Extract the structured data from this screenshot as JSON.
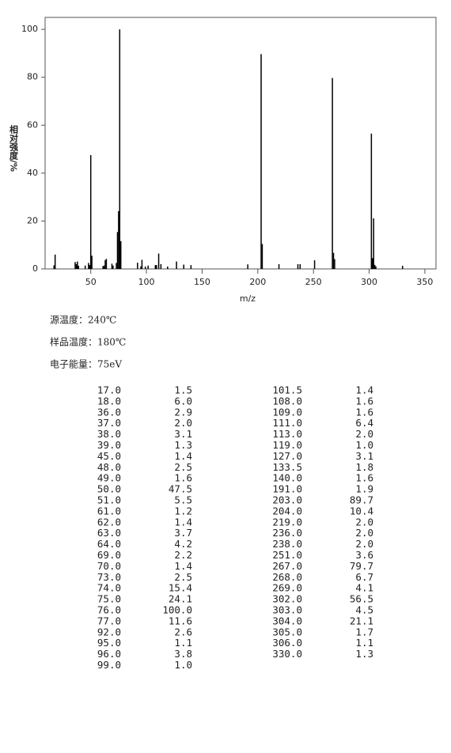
{
  "chart_data": {
    "type": "bar",
    "xlabel": "m/z",
    "ylabel": "相对强度/%",
    "x": [
      17,
      18,
      36,
      37,
      38,
      39,
      45,
      48,
      49,
      50,
      51,
      61,
      62,
      63,
      64,
      69,
      70,
      73,
      74,
      75,
      76,
      77,
      92,
      95,
      96,
      99,
      101.5,
      108,
      109,
      111,
      113,
      119,
      127,
      133.5,
      140,
      191,
      203,
      204,
      219,
      236,
      238,
      251,
      267,
      268,
      269,
      302,
      303,
      304,
      305,
      306,
      330
    ],
    "x_labels": [
      "17.0",
      "18.0",
      "36.0",
      "37.0",
      "38.0",
      "39.0",
      "45.0",
      "48.0",
      "49.0",
      "50.0",
      "51.0",
      "61.0",
      "62.0",
      "63.0",
      "64.0",
      "69.0",
      "70.0",
      "73.0",
      "74.0",
      "75.0",
      "76.0",
      "77.0",
      "92.0",
      "95.0",
      "96.0",
      "99.0",
      "101.5",
      "108.0",
      "109.0",
      "111.0",
      "113.0",
      "119.0",
      "127.0",
      "133.5",
      "140.0",
      "191.0",
      "203.0",
      "204.0",
      "219.0",
      "236.0",
      "238.0",
      "251.0",
      "267.0",
      "268.0",
      "269.0",
      "302.0",
      "303.0",
      "304.0",
      "305.0",
      "306.0",
      "330.0"
    ],
    "values": [
      1.5,
      6.0,
      2.9,
      2.0,
      3.1,
      1.3,
      1.4,
      2.5,
      1.6,
      47.5,
      5.5,
      1.2,
      1.4,
      3.7,
      4.2,
      2.2,
      1.4,
      2.5,
      15.4,
      24.1,
      100.0,
      11.6,
      2.6,
      1.1,
      3.8,
      1.0,
      1.4,
      1.6,
      1.6,
      6.4,
      2.0,
      1.0,
      3.1,
      1.8,
      1.6,
      1.9,
      89.7,
      10.4,
      2.0,
      2.0,
      2.0,
      3.6,
      79.7,
      6.7,
      4.1,
      56.5,
      4.5,
      21.1,
      1.7,
      1.1,
      1.3
    ],
    "value_labels": [
      "1.5",
      "6.0",
      "2.9",
      "2.0",
      "3.1",
      "1.3",
      "1.4",
      "2.5",
      "1.6",
      "47.5",
      "5.5",
      "1.2",
      "1.4",
      "3.7",
      "4.2",
      "2.2",
      "1.4",
      "2.5",
      "15.4",
      "24.1",
      "100.0",
      "11.6",
      "2.6",
      "1.1",
      "3.8",
      "1.0",
      "1.4",
      "1.6",
      "1.6",
      "6.4",
      "2.0",
      "1.0",
      "3.1",
      "1.8",
      "1.6",
      "1.9",
      "89.7",
      "10.4",
      "2.0",
      "2.0",
      "2.0",
      "3.6",
      "79.7",
      "6.7",
      "4.1",
      "56.5",
      "4.5",
      "21.1",
      "1.7",
      "1.1",
      "1.3"
    ],
    "color": "#000000",
    "xlim": [
      9,
      360
    ],
    "xticks": [
      50,
      100,
      150,
      200,
      250,
      300,
      350
    ],
    "ylim": [
      0,
      105
    ],
    "yticks": [
      0,
      20,
      40,
      60,
      80,
      100
    ]
  },
  "info": [
    "源温度：240℃",
    "样品温度：180℃",
    "电子能量：75eV"
  ]
}
